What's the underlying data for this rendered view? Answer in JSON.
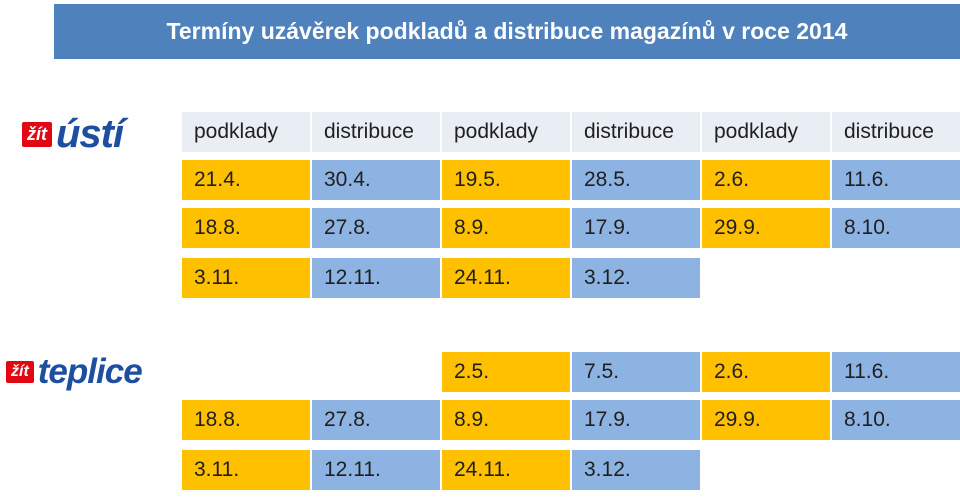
{
  "title": "Termíny uzávěrek podkladů a distribuce magazínů v roce 2014",
  "usti": {
    "logo_badge": "žít",
    "logo_city": "ústí",
    "headers": [
      "podklady",
      "distribuce",
      "podklady",
      "distribuce",
      "podklady",
      "distribuce"
    ],
    "rows": [
      [
        "21.4.",
        "30.4.",
        "19.5.",
        "28.5.",
        "2.6.",
        "11.6."
      ],
      [
        "18.8.",
        "27.8.",
        "8.9.",
        "17.9.",
        "29.9.",
        "8.10."
      ],
      [
        "3.11.",
        "12.11.",
        "24.11.",
        "3.12."
      ]
    ]
  },
  "teplice": {
    "logo_badge": "žít",
    "logo_city": "teplice",
    "rows": [
      [
        "",
        "",
        "2.5.",
        "7.5.",
        "2.6.",
        "11.6."
      ],
      [
        "18.8.",
        "27.8.",
        "8.9.",
        "17.9.",
        "29.9.",
        "8.10."
      ],
      [
        "3.11.",
        "12.11.",
        "24.11.",
        "3.12."
      ]
    ]
  },
  "colors": {
    "header": "#e9edf4",
    "yellow": "#ffc000",
    "blue": "#8db3e2",
    "title_bg": "#4f81bd"
  }
}
